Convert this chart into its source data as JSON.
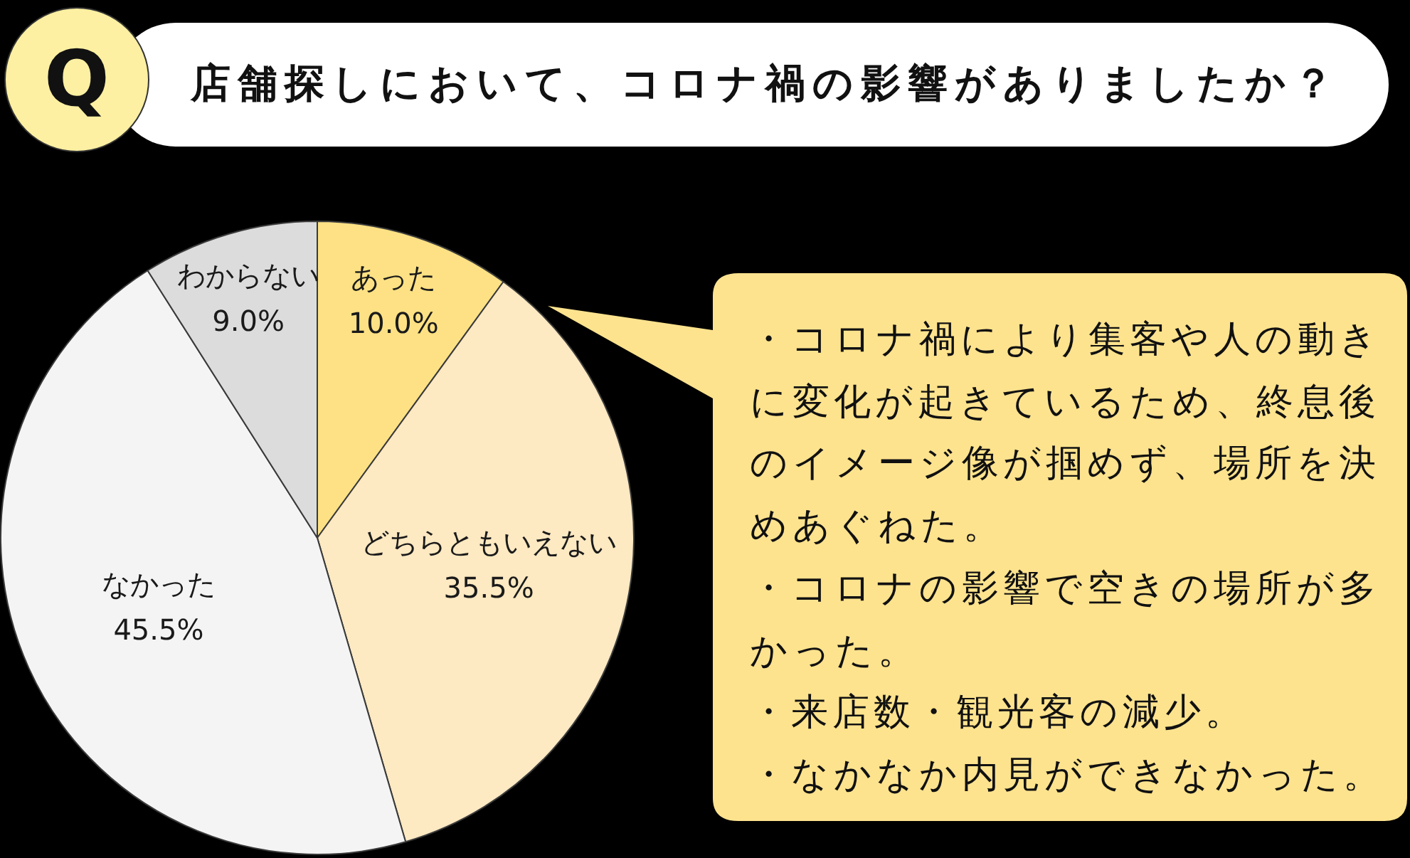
{
  "chart_data": {
    "type": "pie",
    "title": "店舗探しにおいて、コロナ禍の影響がありましたか？",
    "categories": [
      "あった",
      "どちらともいえない",
      "なかった",
      "わからない"
    ],
    "values": [
      10.0,
      35.5,
      45.5,
      9.0
    ],
    "colors": [
      "#fde184",
      "#fde9c2",
      "#f4f4f4",
      "#dcdcdc"
    ],
    "value_labels": [
      "10.0%",
      "35.5%",
      "45.5%",
      "9.0%"
    ],
    "annotations": [
      "Q",
      "・コロナ禍により集客や人の動きに変化が起きているため、終息後のイメージ像が掴めず、場所を決めあぐねた。",
      "・コロナの影響で空きの場所が多かった。",
      "・来店数・観光客の減少。",
      "・なかなか内見ができなかった。"
    ]
  }
}
